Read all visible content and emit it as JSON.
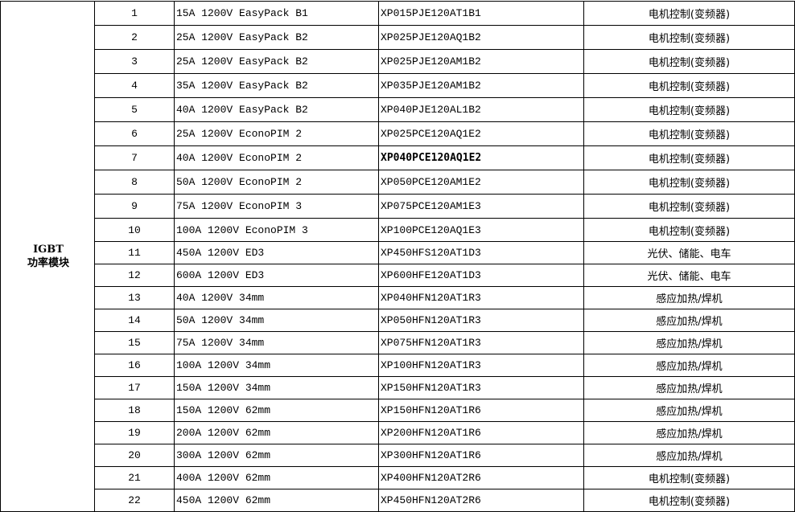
{
  "category": {
    "line1": "IGBT",
    "line2": "功率模块"
  },
  "rows": [
    {
      "no": "1",
      "spec": "15A 1200V EasyPack B1",
      "part": "XP015PJE120AT1B1",
      "app": "电机控制(变频器)"
    },
    {
      "no": "2",
      "spec": "25A 1200V EasyPack B2",
      "part": "XP025PJE120AQ1B2",
      "app": "电机控制(变频器)"
    },
    {
      "no": "3",
      "spec": "25A 1200V EasyPack B2",
      "part": "XP025PJE120AM1B2",
      "app": "电机控制(变频器)"
    },
    {
      "no": "4",
      "spec": "35A 1200V EasyPack B2",
      "part": "XP035PJE120AM1B2",
      "app": "电机控制(变频器)"
    },
    {
      "no": "5",
      "spec": "40A 1200V EasyPack B2",
      "part": "XP040PJE120AL1B2",
      "app": "电机控制(变频器)"
    },
    {
      "no": "6",
      "spec": "25A 1200V EconoPIM 2",
      "part": "XP025PCE120AQ1E2",
      "app": "电机控制(变频器)"
    },
    {
      "no": "7",
      "spec": "40A 1200V EconoPIM 2",
      "part": "XP040PCE120AQ1E2",
      "app": "电机控制(变频器)",
      "bold": true
    },
    {
      "no": "8",
      "spec": "50A 1200V EconoPIM 2",
      "part": "XP050PCE120AM1E2",
      "app": "电机控制(变频器)"
    },
    {
      "no": "9",
      "spec": "75A 1200V EconoPIM 3",
      "part": "XP075PCE120AM1E3",
      "app": "电机控制(变频器)"
    },
    {
      "no": "10",
      "spec": "100A 1200V EconoPIM 3",
      "part": "XP100PCE120AQ1E3",
      "app": "电机控制(变频器)"
    },
    {
      "no": "11",
      "spec": "450A 1200V ED3",
      "part": "XP450HFS120AT1D3",
      "app": "光伏、储能、电车"
    },
    {
      "no": "12",
      "spec": "600A 1200V ED3",
      "part": "XP600HFE120AT1D3",
      "app": "光伏、储能、电车"
    },
    {
      "no": "13",
      "spec": "40A 1200V 34mm",
      "part": "XP040HFN120AT1R3",
      "app": "感应加热/焊机"
    },
    {
      "no": "14",
      "spec": "50A 1200V 34mm",
      "part": "XP050HFN120AT1R3",
      "app": "感应加热/焊机"
    },
    {
      "no": "15",
      "spec": "75A 1200V 34mm",
      "part": "XP075HFN120AT1R3",
      "app": "感应加热/焊机"
    },
    {
      "no": "16",
      "spec": "100A 1200V 34mm",
      "part": "XP100HFN120AT1R3",
      "app": "感应加热/焊机"
    },
    {
      "no": "17",
      "spec": "150A 1200V 34mm",
      "part": "XP150HFN120AT1R3",
      "app": "感应加热/焊机"
    },
    {
      "no": "18",
      "spec": "150A 1200V 62mm",
      "part": "XP150HFN120AT1R6",
      "app": "感应加热/焊机"
    },
    {
      "no": "19",
      "spec": "200A 1200V 62mm",
      "part": "XP200HFN120AT1R6",
      "app": "感应加热/焊机"
    },
    {
      "no": "20",
      "spec": "300A 1200V 62mm",
      "part": "XP300HFN120AT1R6",
      "app": "感应加热/焊机"
    },
    {
      "no": "21",
      "spec": "400A 1200V 62mm",
      "part": "XP400HFN120AT2R6",
      "app": "电机控制(变频器)"
    },
    {
      "no": "22",
      "spec": "450A 1200V 62mm",
      "part": "XP450HFN120AT2R6",
      "app": "电机控制(变频器)"
    }
  ]
}
